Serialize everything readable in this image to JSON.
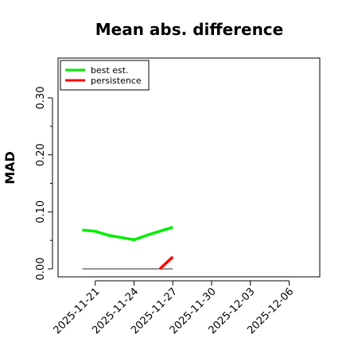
{
  "chart_data": {
    "type": "line",
    "title": "Mean abs. difference",
    "xlabel": "",
    "ylabel": "MAD",
    "x_ticks": [
      "2025-11-21",
      "2025-11-24",
      "2025-11-27",
      "2025-11-30",
      "2025-12-03",
      "2025-12-06"
    ],
    "xlim": [
      "2025-11-18",
      "2025-12-08"
    ],
    "ylim": [
      0,
      0.36
    ],
    "y_ticks": [
      0.0,
      0.1,
      0.2,
      0.3
    ],
    "y_tick_labels": [
      "0.00",
      "0.10",
      "0.20",
      "0.30"
    ],
    "grid": false,
    "legend_position": "top-left",
    "series": [
      {
        "name": "best est.",
        "color": "#00ee00",
        "points": [
          {
            "x": "2025-11-20",
            "y": 0.068
          },
          {
            "x": "2025-11-21",
            "y": 0.066
          },
          {
            "x": "2025-11-22",
            "y": 0.059
          },
          {
            "x": "2025-11-23",
            "y": 0.055
          },
          {
            "x": "2025-11-24",
            "y": 0.051
          },
          {
            "x": "2025-11-25",
            "y": 0.059
          },
          {
            "x": "2025-11-26",
            "y": 0.066
          },
          {
            "x": "2025-11-27",
            "y": 0.073
          }
        ]
      },
      {
        "name": "persistence",
        "color": "#ff0000",
        "points": [
          {
            "x": "2025-11-26",
            "y": 0.0
          },
          {
            "x": "2025-11-27",
            "y": 0.021
          }
        ]
      }
    ],
    "reference_line": {
      "color": "#555555",
      "points": [
        {
          "x": "2025-11-20",
          "y": 0.0
        },
        {
          "x": "2025-11-27",
          "y": 0.0
        }
      ]
    }
  }
}
